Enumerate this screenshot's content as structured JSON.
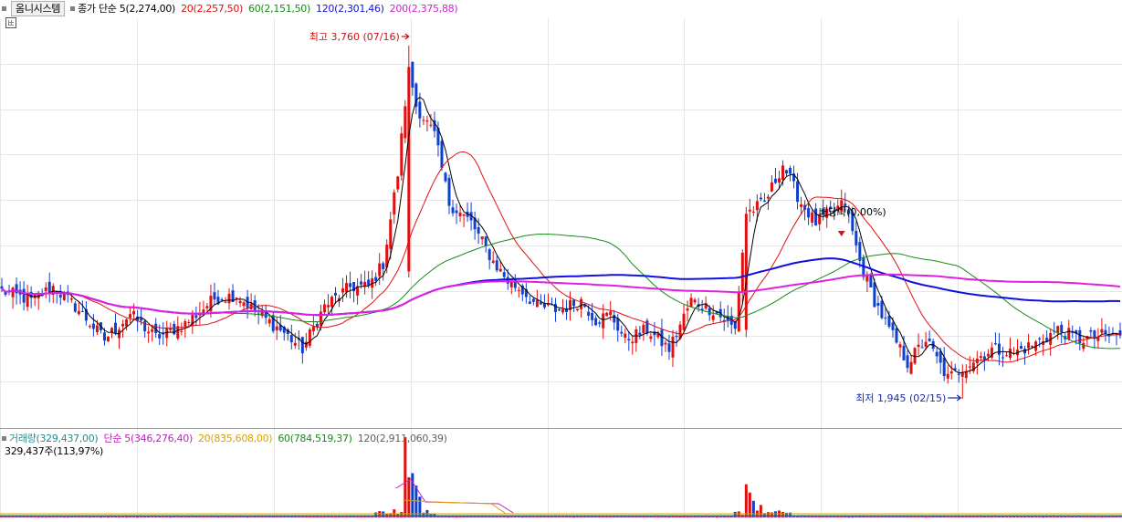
{
  "legend": {
    "title": "옴니시스템",
    "items": [
      {
        "label": "종가 단순 5(2,274,00)",
        "color": "#000000"
      },
      {
        "label": "20(2,257,50)",
        "color": "#e01010"
      },
      {
        "label": "60(2,151,50)",
        "color": "#1a8a1a"
      },
      {
        "label": "120(2,301,46)",
        "color": "#1010e0"
      },
      {
        "label": "200(2,375,88)",
        "color": "#d020d0"
      }
    ]
  },
  "volume_legend": {
    "items": [
      {
        "label": "거래량(329,437,00)",
        "color": "#2a8a8a"
      },
      {
        "label": "단순 5(346,276,40)",
        "color": "#c020c0"
      },
      {
        "label": "20(835,608,00)",
        "color": "#d8a000"
      },
      {
        "label": "60(784,519,37)",
        "color": "#1a8a1a"
      },
      {
        "label": "120(2,911,060,39)",
        "color": "#606060"
      }
    ],
    "sub": "329,437주(113,97%)"
  },
  "annotations": {
    "high": "최고 3,760 (07/16)",
    "low": "최저 1,945 (02/15)",
    "dividend": "배당락(0,00%)"
  },
  "chart_data": {
    "type": "candlestick",
    "title": "옴니시스템",
    "ylim": [
      1800,
      3900
    ],
    "high": 3760,
    "low": 1945,
    "colors": {
      "up": "#e01010",
      "down": "#1040d0"
    },
    "anchors": [
      [
        0,
        2500
      ],
      [
        8,
        2450
      ],
      [
        14,
        2520
      ],
      [
        20,
        2420
      ],
      [
        28,
        2250
      ],
      [
        35,
        2380
      ],
      [
        42,
        2260
      ],
      [
        50,
        2330
      ],
      [
        58,
        2460
      ],
      [
        64,
        2480
      ],
      [
        70,
        2380
      ],
      [
        76,
        2300
      ],
      [
        82,
        2200
      ],
      [
        88,
        2420
      ],
      [
        95,
        2520
      ],
      [
        100,
        2520
      ],
      [
        104,
        2640
      ],
      [
        108,
        3100
      ],
      [
        111,
        3650
      ],
      [
        113,
        3450
      ],
      [
        118,
        3300
      ],
      [
        122,
        2950
      ],
      [
        128,
        2850
      ],
      [
        134,
        2650
      ],
      [
        138,
        2550
      ],
      [
        142,
        2500
      ],
      [
        146,
        2420
      ],
      [
        152,
        2400
      ],
      [
        158,
        2450
      ],
      [
        162,
        2350
      ],
      [
        166,
        2380
      ],
      [
        170,
        2250
      ],
      [
        176,
        2300
      ],
      [
        182,
        2200
      ],
      [
        188,
        2450
      ],
      [
        194,
        2400
      ],
      [
        200,
        2300
      ],
      [
        203,
        2900
      ],
      [
        208,
        2950
      ],
      [
        213,
        3150
      ],
      [
        218,
        2950
      ],
      [
        222,
        2850
      ],
      [
        226,
        2900
      ],
      [
        230,
        2950
      ],
      [
        234,
        2650
      ],
      [
        238,
        2450
      ],
      [
        242,
        2300
      ],
      [
        247,
        2130
      ],
      [
        252,
        2250
      ],
      [
        258,
        2050
      ],
      [
        264,
        2130
      ],
      [
        270,
        2200
      ],
      [
        276,
        2180
      ],
      [
        282,
        2230
      ],
      [
        288,
        2300
      ],
      [
        294,
        2250
      ],
      [
        300,
        2270
      ],
      [
        305,
        2270
      ]
    ],
    "ma_periods": [
      5,
      20,
      60,
      120,
      200
    ],
    "ma_colors": [
      "#000000",
      "#e01010",
      "#1a8a1a",
      "#1010e0",
      "#e020e0"
    ],
    "volume": {
      "spikes": [
        [
          110,
          580000
        ],
        [
          111,
          290000
        ],
        [
          112,
          320000
        ],
        [
          113,
          230000
        ],
        [
          114,
          150000
        ],
        [
          203,
          240000
        ],
        [
          204,
          180000
        ],
        [
          205,
          120000
        ],
        [
          207,
          90000
        ]
      ]
    }
  }
}
